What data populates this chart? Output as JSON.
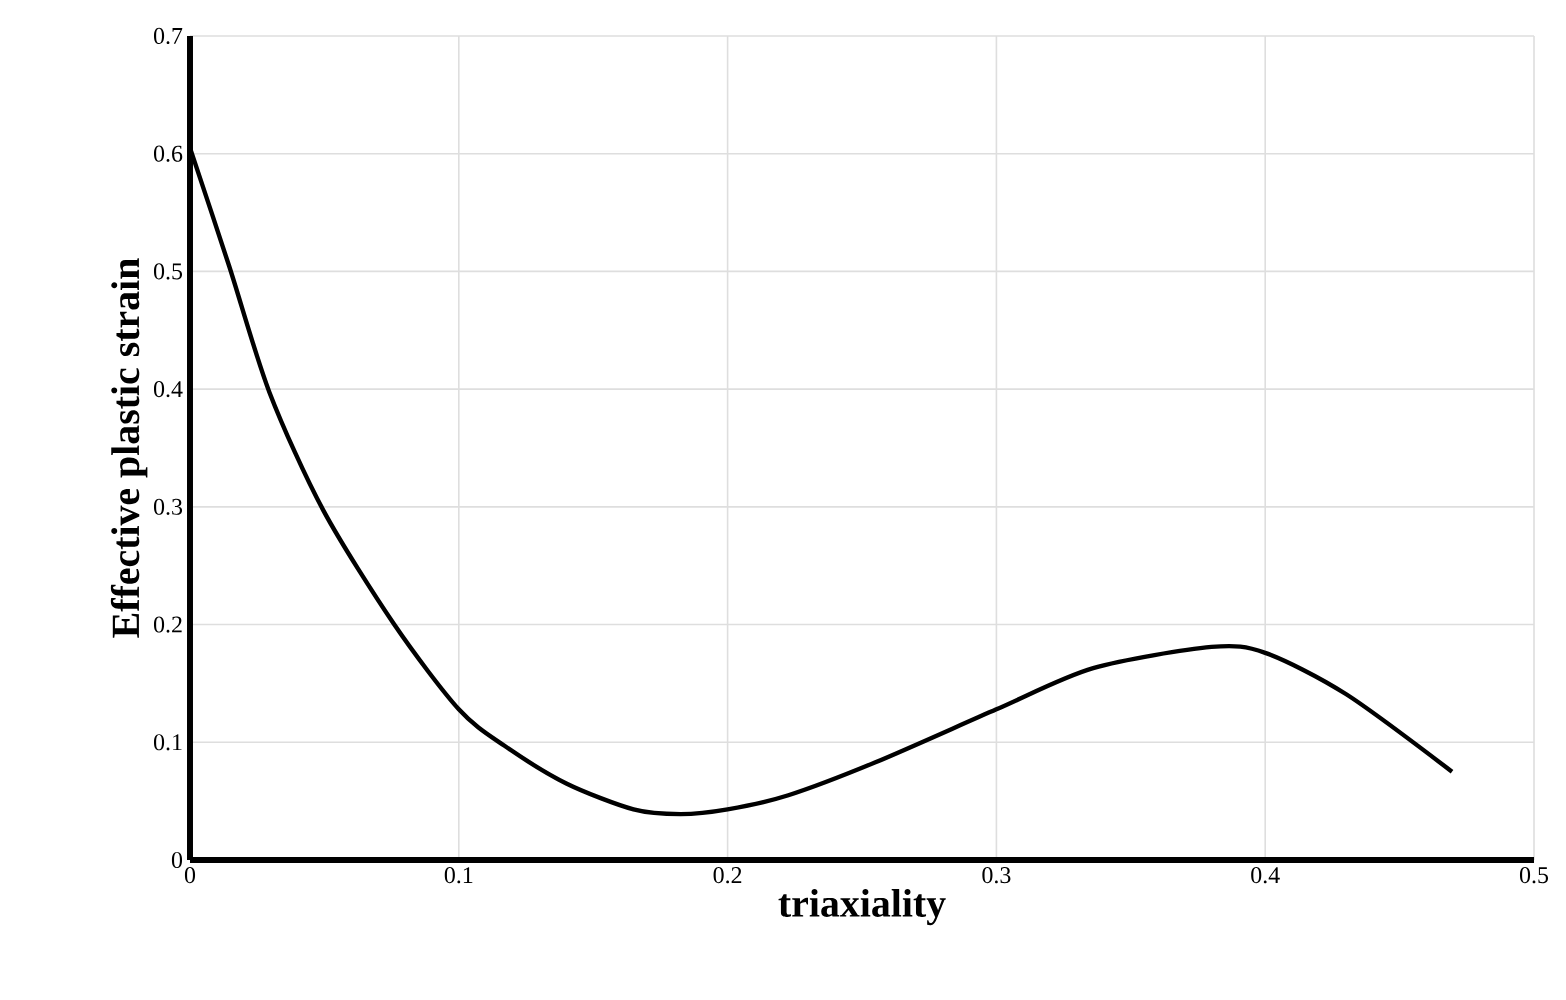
{
  "chart_data": {
    "type": "line",
    "xlabel": "triaxiality",
    "ylabel": "Effective plastic strain",
    "xlim": [
      0,
      0.5
    ],
    "ylim": [
      0,
      0.7
    ],
    "xticks": [
      0,
      0.1,
      0.2,
      0.3,
      0.4,
      0.5
    ],
    "yticks": [
      0,
      0.1,
      0.2,
      0.3,
      0.4,
      0.5,
      0.6,
      0.7
    ],
    "grid": true,
    "marker": "none",
    "line_style": "solid",
    "series": [
      {
        "color": "#000000",
        "x": [
          0,
          0.0145,
          0.0296,
          0.0496,
          0.076,
          0.1,
          0.117,
          0.14,
          0.165,
          0.1825,
          0.2,
          0.2226,
          0.255,
          0.3,
          0.336,
          0.38,
          0.4,
          0.43,
          0.4695
        ],
        "values": [
          0.605,
          0.505,
          0.397,
          0.297,
          0.2,
          0.128,
          0.097,
          0.065,
          0.043,
          0.039,
          0.043,
          0.055,
          0.083,
          0.128,
          0.163,
          0.181,
          0.176,
          0.141,
          0.075
        ]
      }
    ]
  }
}
